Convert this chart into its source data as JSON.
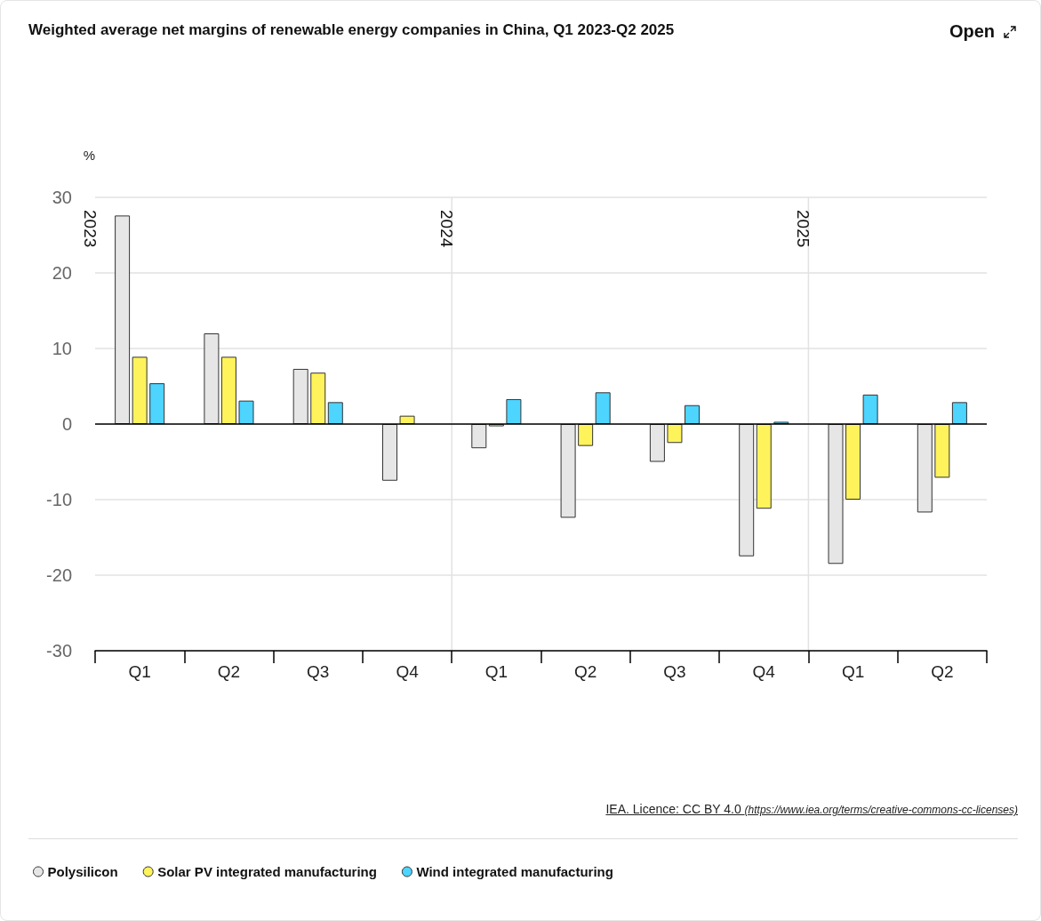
{
  "chart_data": {
    "type": "bar",
    "title": "Weighted average net margins of renewable energy companies in China, Q1 2023-Q2 2025",
    "ylabel": "%",
    "categories": [
      "Q1",
      "Q2",
      "Q3",
      "Q4",
      "Q1",
      "Q2",
      "Q3",
      "Q4",
      "Q1",
      "Q2"
    ],
    "series": [
      {
        "name": "Polysilicon",
        "color": "#e6e6e6",
        "values": [
          27.6,
          12.0,
          7.3,
          -7.5,
          -3.2,
          -12.4,
          -5.0,
          -17.5,
          -18.5,
          -11.7
        ]
      },
      {
        "name": "Solar PV integrated manufacturing",
        "color": "#fff35c",
        "values": [
          8.9,
          8.9,
          6.8,
          1.1,
          -0.3,
          -2.9,
          -2.5,
          -11.2,
          -10.0,
          -7.1
        ]
      },
      {
        "name": "Wind integrated manufacturing",
        "color": "#4dd4ff",
        "values": [
          5.4,
          3.1,
          2.9,
          null,
          3.3,
          4.2,
          2.5,
          0.3,
          3.9,
          2.9
        ]
      }
    ],
    "ylim": [
      -30,
      30
    ],
    "yticks": [
      -30,
      -20,
      -10,
      0,
      10,
      20,
      30
    ],
    "ref_lines": [
      {
        "axis": "y",
        "value": 0,
        "color": "#000000"
      }
    ],
    "grid": "y",
    "legend": "bottom left",
    "annotations": [
      "2023",
      "2024",
      "2025",
      "IEA. Licence: CC BY 4.0 (https://www.iea.org/terms/creative-commons-cc-licenses)",
      "Open"
    ]
  }
}
